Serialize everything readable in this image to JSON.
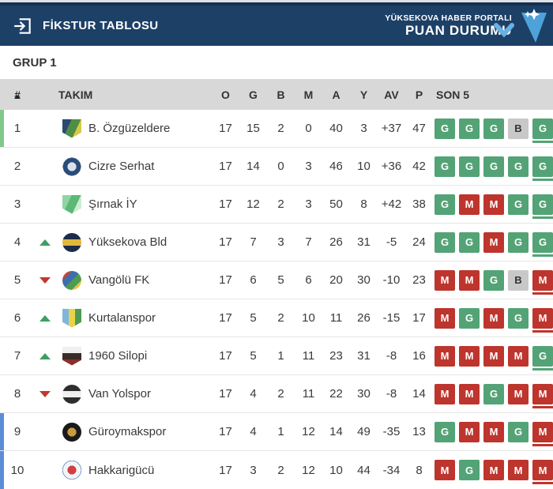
{
  "appbar": {
    "title": "FİKSTUR TABLOSU",
    "portal_name": "YÜKSEKOVA HABER PORTALI",
    "section_title": "PUAN DURUMU"
  },
  "group": {
    "label": "GRUP 1"
  },
  "table": {
    "columns": {
      "pos": "#",
      "team": "TAKIM",
      "stats": [
        "O",
        "G",
        "B",
        "M",
        "A",
        "Y",
        "AV",
        "P"
      ],
      "form": "SON 5"
    },
    "rows": [
      {
        "pos": 1,
        "team": "B. Özgüzeldere",
        "movement": null,
        "accent": "green",
        "stats": [
          17,
          15,
          2,
          0,
          40,
          3,
          "+37",
          47
        ],
        "form": [
          "G",
          "G",
          "G",
          "B",
          "G"
        ],
        "badge": {
          "shape": "shield",
          "kind": "stripes",
          "angle": 115,
          "colors": [
            "#2b4a71",
            "#4e8f45",
            "#d8c84a"
          ]
        }
      },
      {
        "pos": 2,
        "team": "Cizre Serhat",
        "movement": null,
        "accent": null,
        "stats": [
          17,
          14,
          0,
          3,
          46,
          10,
          "+36",
          42
        ],
        "form": [
          "G",
          "G",
          "G",
          "G",
          "G"
        ],
        "badge": {
          "shape": "circle",
          "kind": "rings",
          "colors": [
            "#d9e2ec",
            "#2a4d79",
            "#e6e6e6"
          ]
        }
      },
      {
        "pos": 3,
        "team": "Şırnak İY",
        "movement": null,
        "accent": null,
        "stats": [
          17,
          12,
          2,
          3,
          50,
          8,
          "+42",
          38
        ],
        "form": [
          "G",
          "M",
          "M",
          "G",
          "G"
        ],
        "badge": {
          "shape": "shield",
          "kind": "stripes",
          "angle": 115,
          "colors": [
            "#8fd4a1",
            "#5cb877",
            "#cdeccf"
          ]
        }
      },
      {
        "pos": 4,
        "team": "Yüksekova Bld",
        "movement": "up",
        "accent": null,
        "stats": [
          17,
          7,
          3,
          7,
          26,
          31,
          "-5",
          24
        ],
        "form": [
          "G",
          "G",
          "M",
          "G",
          "G"
        ],
        "badge": {
          "shape": "circle",
          "kind": "stripes",
          "angle": 180,
          "colors": [
            "#1d2c4a",
            "#e0b83c",
            "#1d2c4a"
          ]
        }
      },
      {
        "pos": 5,
        "team": "Vangölü FK",
        "movement": "down",
        "accent": null,
        "stats": [
          17,
          6,
          5,
          6,
          20,
          30,
          "-10",
          23
        ],
        "form": [
          "M",
          "M",
          "G",
          "B",
          "M"
        ],
        "badge": {
          "shape": "circle",
          "kind": "stripes",
          "angle": 135,
          "colors": [
            "#c94436",
            "#3c6fae",
            "#4e9b52",
            "#e2c348"
          ]
        }
      },
      {
        "pos": 6,
        "team": "Kurtalanspor",
        "movement": "up",
        "accent": null,
        "stats": [
          17,
          5,
          2,
          10,
          11,
          26,
          "-15",
          17
        ],
        "form": [
          "M",
          "G",
          "M",
          "G",
          "M"
        ],
        "badge": {
          "shape": "shield",
          "kind": "stripes",
          "angle": 90,
          "colors": [
            "#7db7dd",
            "#e8d44a",
            "#4e9b52"
          ]
        }
      },
      {
        "pos": 7,
        "team": "1960 Silopi",
        "movement": "up",
        "accent": null,
        "stats": [
          17,
          5,
          1,
          11,
          23,
          31,
          "-8",
          16
        ],
        "form": [
          "M",
          "M",
          "M",
          "M",
          "G"
        ],
        "badge": {
          "shape": "shield",
          "kind": "stripes",
          "angle": 180,
          "colors": [
            "#f0f0f0",
            "#3a2c28",
            "#8a2f2a"
          ]
        }
      },
      {
        "pos": 8,
        "team": "Van Yolspor",
        "movement": "down",
        "accent": null,
        "stats": [
          17,
          4,
          2,
          11,
          22,
          30,
          "-8",
          14
        ],
        "form": [
          "M",
          "M",
          "G",
          "M",
          "M"
        ],
        "badge": {
          "shape": "circle",
          "kind": "stripes",
          "angle": 180,
          "colors": [
            "#2e2e2e",
            "#f0f0f0",
            "#2e2e2e"
          ]
        }
      },
      {
        "pos": 9,
        "team": "Güroymakspor",
        "movement": null,
        "accent": "blue",
        "stats": [
          17,
          4,
          1,
          12,
          14,
          49,
          "-35",
          13
        ],
        "form": [
          "G",
          "M",
          "M",
          "G",
          "M"
        ],
        "badge": {
          "shape": "circle",
          "kind": "rings",
          "colors": [
            "#c89a3f",
            "#1a1a1a",
            "#1a1a1a"
          ]
        }
      },
      {
        "pos": 10,
        "team": "Hakkarigücü",
        "movement": null,
        "accent": "blue",
        "stats": [
          17,
          3,
          2,
          12,
          10,
          44,
          "-34",
          8
        ],
        "form": [
          "M",
          "G",
          "M",
          "M",
          "M"
        ],
        "badge": {
          "shape": "circle",
          "kind": "rings",
          "colors": [
            "#d04040",
            "#f2f4f8",
            "#3a63a8"
          ]
        }
      }
    ]
  },
  "colors": {
    "win": "#53a376",
    "loss": "#bd352d",
    "draw": "#c8c8c8",
    "accent_green": "#7fc98b",
    "accent_blue": "#5b8ed7",
    "move_up": "#3f9e64",
    "move_down": "#c3372c",
    "appbar_bg": "#1d4067",
    "colhead_bg": "#d8d8d8",
    "logo_blue": "#4da2d9"
  }
}
